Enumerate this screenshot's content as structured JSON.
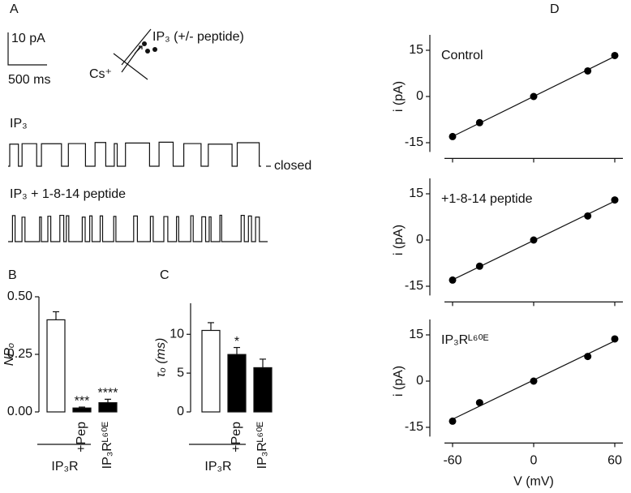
{
  "panel_a": {
    "label": "A",
    "scale_current": "10 pA",
    "scale_time": "500 ms",
    "pipette_label": "IP₃ (+/- peptide)",
    "ion_label": "Cs⁺",
    "trace1_label": "IP₃",
    "closed_label": "closed",
    "trace2_label": "IP₃ + 1-8-14 peptide"
  },
  "chart_data": [
    {
      "type": "bar",
      "panel": "B",
      "ylabel": "NPₒ",
      "categories": [
        null,
        "+Pep",
        "IP₃Rᴸ⁶⁰ᴱ"
      ],
      "group_label": "IP₃R",
      "values": [
        0.4,
        0.017,
        0.04
      ],
      "errors": [
        0.035,
        0.004,
        0.015
      ],
      "annotations": [
        null,
        "***",
        "****"
      ],
      "colors": [
        "#ffffff",
        "#000000",
        "#000000"
      ],
      "ylim": [
        0,
        0.5
      ],
      "yticks": [
        {
          "value": 0,
          "label": "0.00"
        },
        {
          "value": 0.25,
          "label": "0.25"
        },
        {
          "value": 0.5,
          "label": "0.50"
        }
      ]
    },
    {
      "type": "bar",
      "panel": "C",
      "ylabel": "τₒ (ms)",
      "categories": [
        null,
        "+Pep",
        "IP₃Rᴸ⁶⁰ᴱ"
      ],
      "group_label": "IP₃R",
      "values": [
        10.5,
        7.4,
        5.7
      ],
      "errors": [
        1.0,
        0.9,
        1.1
      ],
      "annotations": [
        null,
        "*",
        null
      ],
      "colors": [
        "#ffffff",
        "#000000",
        "#000000"
      ],
      "ylim": [
        0,
        14
      ],
      "yticks": [
        0,
        5,
        10
      ]
    },
    {
      "type": "scatter",
      "panel": "D",
      "label": "Control",
      "ylabel": "i (pA)",
      "x": [
        -60,
        -40,
        0,
        40,
        60
      ],
      "values": [
        -13,
        -8.5,
        0,
        8.3,
        13.3
      ],
      "color": "#000000",
      "fit_line": true,
      "xlim": [
        -66,
        66
      ],
      "xticks": [
        -60,
        0,
        60
      ],
      "xtick_labels": false,
      "ylim": [
        -18,
        20
      ],
      "yticks": [
        -15,
        0,
        15
      ]
    },
    {
      "type": "scatter",
      "label": "+1-8-14 peptide",
      "ylabel": "i (pA)",
      "x": [
        -60,
        -40,
        0,
        40,
        60
      ],
      "values": [
        -13,
        -8.5,
        0,
        7.8,
        13
      ],
      "color": "#000000",
      "fit_line": true,
      "xlim": [
        -66,
        66
      ],
      "xticks": [
        -60,
        0,
        60
      ],
      "xtick_labels": false,
      "ylim": [
        -18,
        20
      ],
      "yticks": [
        -15,
        0,
        15
      ]
    },
    {
      "type": "scatter",
      "label": "IP₃Rᴸ⁶⁰ᴱ",
      "ylabel": "i (pA)",
      "xlabel": "V (mV)",
      "x": [
        -60,
        -40,
        0,
        40,
        60
      ],
      "values": [
        -13,
        -7,
        0,
        8,
        13.7
      ],
      "color": "#000000",
      "fit_line": true,
      "xlim": [
        -66,
        66
      ],
      "xticks": [
        -60,
        0,
        60
      ],
      "xtick_labels": true,
      "ylim": [
        -18,
        20
      ],
      "yticks": [
        -15,
        0,
        15
      ]
    }
  ]
}
